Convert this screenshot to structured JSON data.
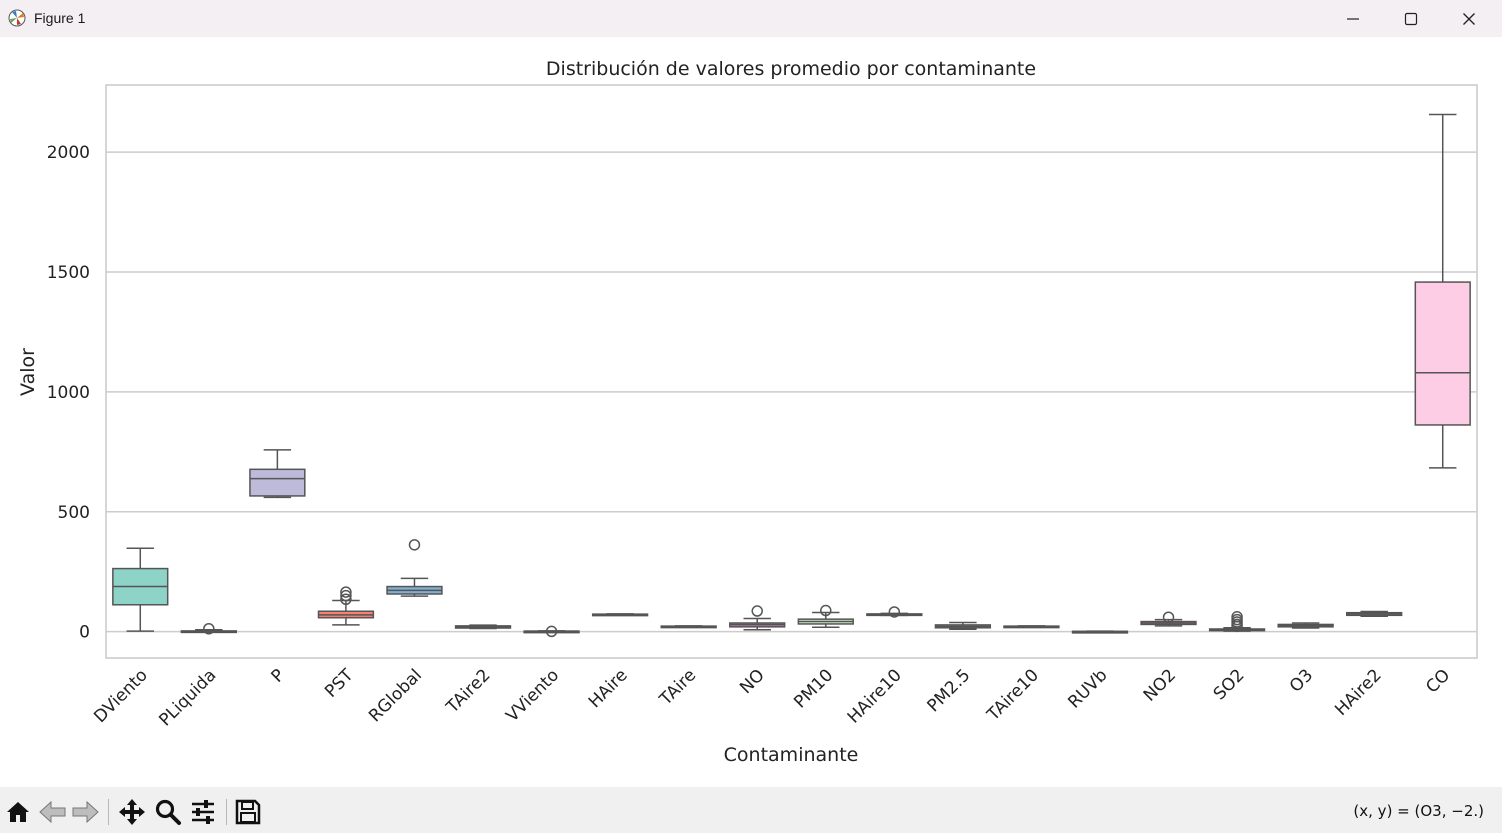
{
  "window": {
    "title": "Figure 1",
    "icons": {
      "app": "matplotlib-logo-icon",
      "minimize": "minimize-icon",
      "maximize": "maximize-icon",
      "close": "close-icon"
    }
  },
  "toolbar": {
    "buttons": [
      {
        "name": "home-button",
        "icon": "home-icon"
      },
      {
        "name": "back-button",
        "icon": "arrow-left-icon"
      },
      {
        "name": "forward-button",
        "icon": "arrow-right-icon"
      },
      {
        "name": "pan-button",
        "icon": "move-icon"
      },
      {
        "name": "zoom-button",
        "icon": "magnifier-icon"
      },
      {
        "name": "configure-subplots-button",
        "icon": "sliders-icon"
      },
      {
        "name": "save-button",
        "icon": "floppy-disk-icon"
      }
    ],
    "coordinates": "(x, y) = (O3, −2.)"
  },
  "chart_data": {
    "type": "box",
    "title": "Distribución de valores promedio por contaminante",
    "xlabel": "Contaminante",
    "ylabel": "Valor",
    "ylim": [
      -110,
      2280
    ],
    "yticks": [
      0,
      500,
      1000,
      1500,
      2000
    ],
    "grid": true,
    "legend": "none",
    "categories": [
      "DViento",
      "PLiquida",
      "P",
      "PST",
      "RGlobal",
      "TAire2",
      "VViento",
      "HAire",
      "TAire",
      "NO",
      "PM10",
      "HAire10",
      "PM2.5",
      "TAire10",
      "RUVb",
      "NO2",
      "SO2",
      "O3",
      "HAire2",
      "CO"
    ],
    "series": [
      {
        "category": "DViento",
        "whislo": 2,
        "q1": 112,
        "median": 188,
        "q3": 263,
        "whishi": 348,
        "fliers": [],
        "color": "#8dd3c7"
      },
      {
        "category": "PLiquida",
        "whislo": 0,
        "q1": 0,
        "median": 1,
        "q3": 3,
        "whishi": 8,
        "fliers": [
          12
        ],
        "color": "#ffffb3"
      },
      {
        "category": "P",
        "whislo": 560,
        "q1": 566,
        "median": 638,
        "q3": 677,
        "whishi": 758,
        "fliers": [],
        "color": "#bebada"
      },
      {
        "category": "PST",
        "whislo": 28,
        "q1": 58,
        "median": 70,
        "q3": 85,
        "whishi": 130,
        "fliers": [
          135,
          150,
          165
        ],
        "color": "#fb8072"
      },
      {
        "category": "RGlobal",
        "whislo": 148,
        "q1": 157,
        "median": 172,
        "q3": 188,
        "whishi": 222,
        "fliers": [
          362
        ],
        "color": "#80b1d3"
      },
      {
        "category": "TAire2",
        "whislo": 13,
        "q1": 15,
        "median": 19,
        "q3": 24,
        "whishi": 27,
        "fliers": [],
        "color": "#fdb462"
      },
      {
        "category": "VViento",
        "whislo": 1,
        "q1": 1,
        "median": 2,
        "q3": 2,
        "whishi": 3,
        "fliers": [
          1
        ],
        "color": "#b3de69"
      },
      {
        "category": "HAire",
        "whislo": 70,
        "q1": 71,
        "median": 72,
        "q3": 73,
        "whishi": 74,
        "fliers": [],
        "color": "#fccde5"
      },
      {
        "category": "TAire",
        "whislo": 20,
        "q1": 21,
        "median": 22,
        "q3": 23,
        "whishi": 24,
        "fliers": [],
        "color": "#d9d9d9"
      },
      {
        "category": "NO",
        "whislo": 8,
        "q1": 20,
        "median": 29,
        "q3": 36,
        "whishi": 55,
        "fliers": [
          86
        ],
        "color": "#bc80bd"
      },
      {
        "category": "PM10",
        "whislo": 18,
        "q1": 32,
        "median": 42,
        "q3": 52,
        "whishi": 80,
        "fliers": [
          88
        ],
        "color": "#ccebc5"
      },
      {
        "category": "HAire10",
        "whislo": 68,
        "q1": 70,
        "median": 72,
        "q3": 74,
        "whishi": 76,
        "fliers": [
          82
        ],
        "color": "#ffed6f"
      },
      {
        "category": "PM2.5",
        "whislo": 10,
        "q1": 16,
        "median": 22,
        "q3": 28,
        "whishi": 38,
        "fliers": [],
        "color": "#8dd3c7"
      },
      {
        "category": "TAire10",
        "whislo": 20,
        "q1": 21,
        "median": 22,
        "q3": 23,
        "whishi": 24,
        "fliers": [],
        "color": "#ffffb3"
      },
      {
        "category": "RUVb",
        "whislo": 0,
        "q1": 0,
        "median": 1,
        "q3": 1,
        "whishi": 2,
        "fliers": [],
        "color": "#bebada"
      },
      {
        "category": "NO2",
        "whislo": 24,
        "q1": 30,
        "median": 36,
        "q3": 42,
        "whishi": 50,
        "fliers": [
          60
        ],
        "color": "#fb8072"
      },
      {
        "category": "SO2",
        "whislo": 2,
        "q1": 4,
        "median": 7,
        "q3": 11,
        "whishi": 16,
        "fliers": [
          22,
          30,
          40,
          50,
          62
        ],
        "color": "#80b1d3"
      },
      {
        "category": "O3",
        "whislo": 15,
        "q1": 20,
        "median": 25,
        "q3": 30,
        "whishi": 36,
        "fliers": [],
        "color": "#fdb462"
      },
      {
        "category": "HAire2",
        "whislo": 64,
        "q1": 68,
        "median": 74,
        "q3": 79,
        "whishi": 84,
        "fliers": [],
        "color": "#b3de69"
      },
      {
        "category": "CO",
        "whislo": 683,
        "q1": 862,
        "median": 1080,
        "q3": 1458,
        "whishi": 2157,
        "fliers": [],
        "color": "#fccde5"
      }
    ]
  }
}
